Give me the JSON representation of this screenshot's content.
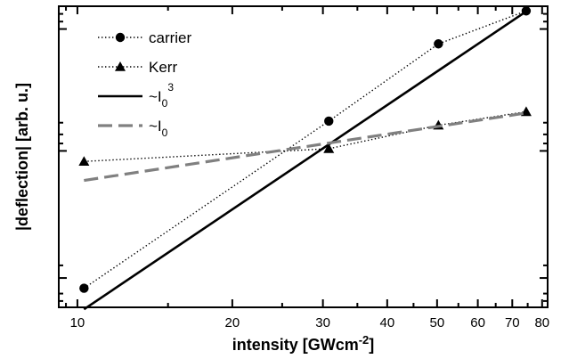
{
  "chart_data": {
    "type": "line",
    "xlabel": "intensity [GWcm",
    "xlabel_sup": "-2",
    "xlabel_end": "]",
    "ylabel": "|deflection| [arb. u.]",
    "x_scale": "log",
    "y_scale": "log",
    "xlim": [
      9.2,
      82
    ],
    "ylim": [
      0.0107,
      17.5
    ],
    "x_ticks": [
      10,
      20,
      30,
      40,
      50,
      60,
      70,
      80
    ],
    "x_tick_labels": [
      "10",
      "20",
      "30",
      "40",
      "50",
      "60",
      "70",
      "80"
    ],
    "y_major_ticks": [
      0.022,
      0.5,
      10
    ],
    "legend_placement": "top-left",
    "grid": false,
    "series": [
      {
        "name": "carrier",
        "style": "dotted",
        "marker": "circle",
        "color": "#000000",
        "x": [
          10.3,
          30.8,
          50.3,
          74.5
        ],
        "y": [
          0.0171,
          1.04,
          6.94,
          15.6
        ]
      },
      {
        "name": "Kerr",
        "style": "dotted",
        "marker": "triangle",
        "color": "#000000",
        "x": [
          10.3,
          30.8,
          50.3,
          74.5
        ],
        "y": [
          0.386,
          0.528,
          0.939,
          1.31
        ]
      },
      {
        "name": "~I",
        "name_sub": "0",
        "name_sup": "3",
        "style": "solid",
        "marker": "none",
        "color": "#000000",
        "x": [
          10.3,
          74.5
        ],
        "y": [
          0.0102,
          15.4
        ]
      },
      {
        "name": "~I",
        "name_sub": "0",
        "name_sup": "",
        "style": "dashed",
        "marker": "none",
        "color": "#808080",
        "x": [
          10.3,
          74.5
        ],
        "y": [
          0.242,
          1.27
        ]
      }
    ]
  }
}
